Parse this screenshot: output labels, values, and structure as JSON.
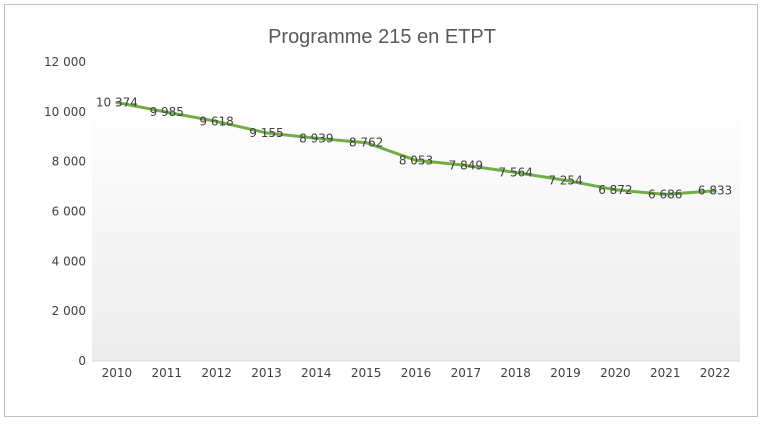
{
  "chart_data": {
    "type": "line",
    "title": "Programme 215 en ETPT",
    "xlabel": "",
    "ylabel": "",
    "categories": [
      "2010",
      "2011",
      "2012",
      "2013",
      "2014",
      "2015",
      "2016",
      "2017",
      "2018",
      "2019",
      "2020",
      "2021",
      "2022"
    ],
    "series": [
      {
        "values": [
          10374,
          9985,
          9618,
          9155,
          8939,
          8762,
          8053,
          7849,
          7564,
          7254,
          6872,
          6686,
          6833
        ],
        "labels": [
          "10 374",
          "9 985",
          "9 618",
          "9 155",
          "8 939",
          "8 762",
          "8 053",
          "7 849",
          "7 564",
          "7 254",
          "6 872",
          "6 686",
          "6 833"
        ],
        "color": "#70ad47"
      }
    ],
    "ylim": [
      0,
      12000
    ],
    "yticks": [
      0,
      2000,
      4000,
      6000,
      8000,
      10000,
      12000
    ],
    "ytick_labels": [
      "0",
      "2 000",
      "4 000",
      "6 000",
      "8 000",
      "10 000",
      "12 000"
    ],
    "grid": false,
    "legend": "none"
  }
}
